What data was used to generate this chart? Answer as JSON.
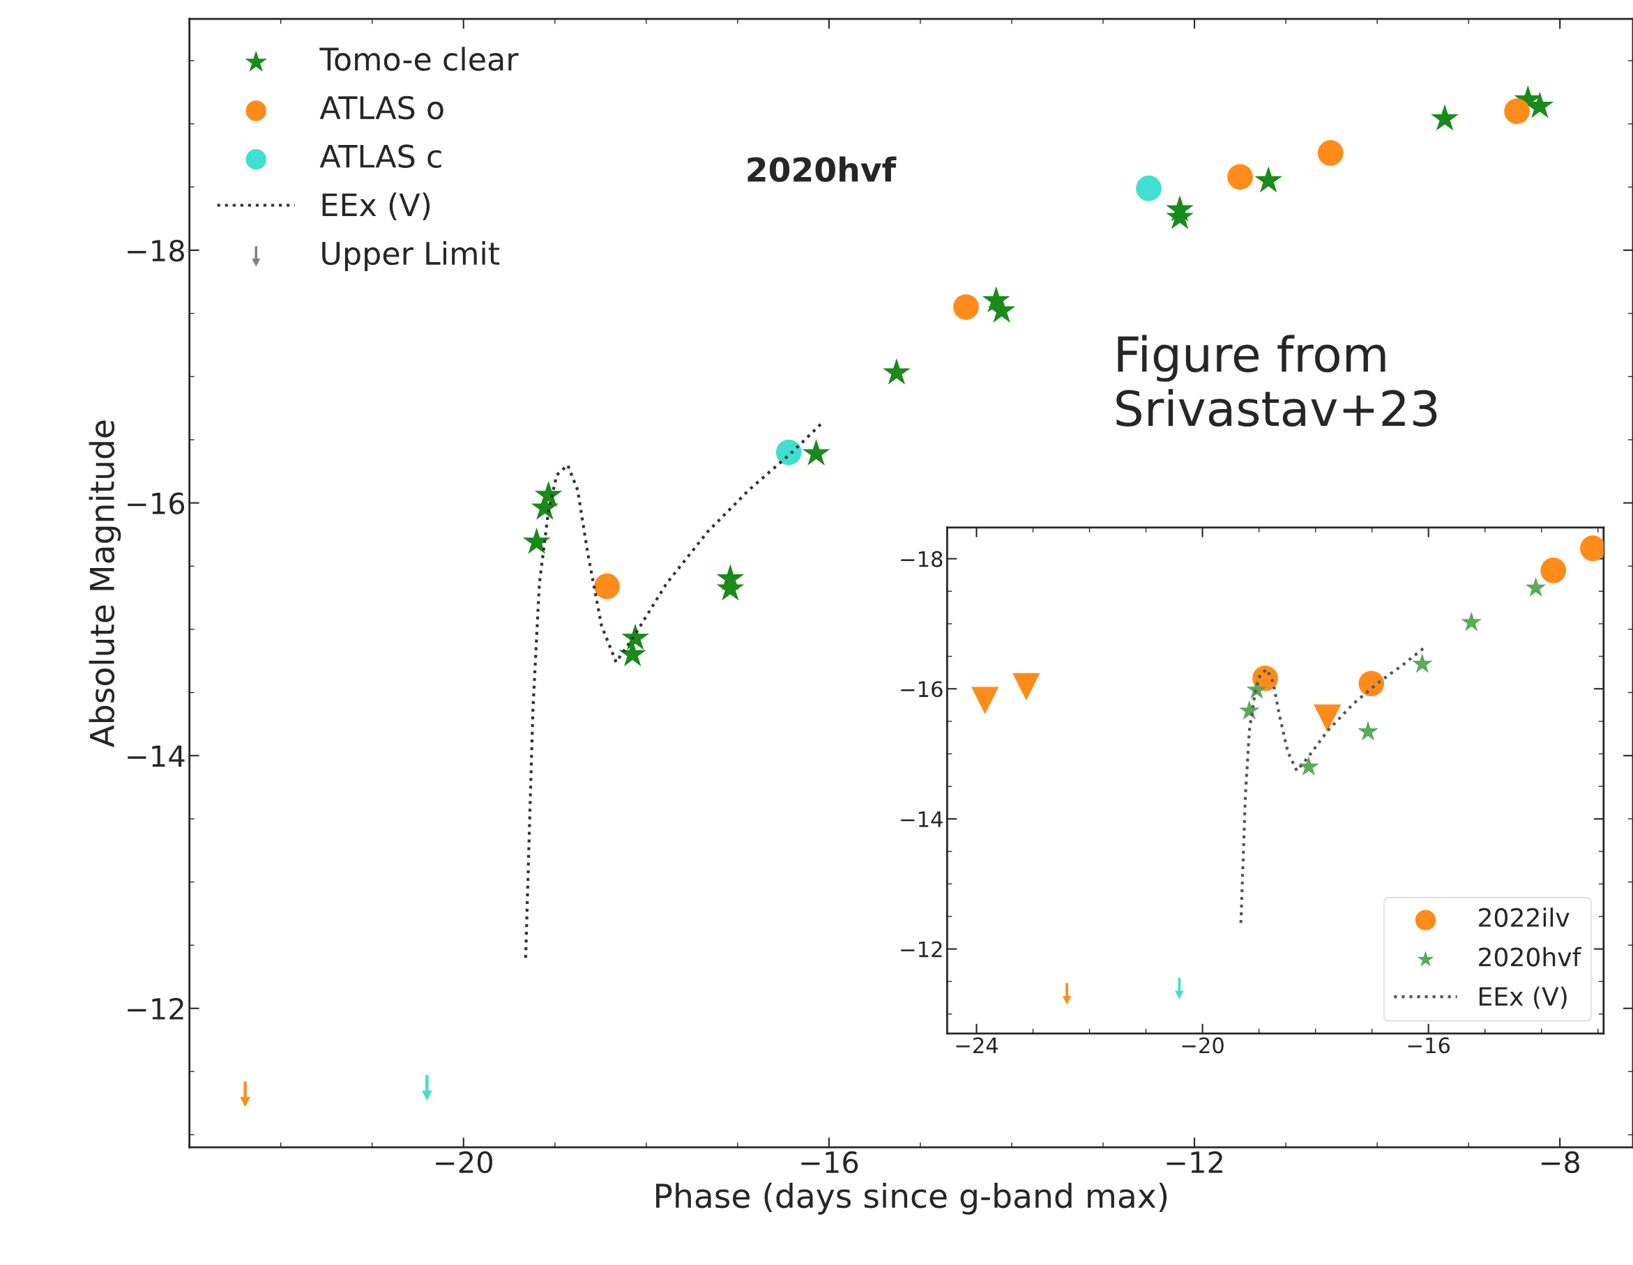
{
  "chart_data": [
    {
      "type": "scatter",
      "xlabel": "Phase (days since g-band max)",
      "ylabel": "Absolute Magnitude",
      "annotations": [
        "2020hvf",
        "Figure from Srivastav+23"
      ],
      "xlim": [
        -23.0,
        -7.2
      ],
      "ylim": [
        -10.9,
        -19.83
      ],
      "xticks": [
        {
          "value": -20,
          "label": "−20"
        },
        {
          "value": -16,
          "label": "−16"
        },
        {
          "value": -12,
          "label": "−12"
        },
        {
          "value": -8,
          "label": "−8"
        }
      ],
      "yticks": [
        {
          "value": -18,
          "label": "−18"
        },
        {
          "value": -16,
          "label": "−16"
        },
        {
          "value": -14,
          "label": "−14"
        },
        {
          "value": -12,
          "label": "−12"
        }
      ],
      "grid": false,
      "legend": "top left",
      "series": [
        {
          "name": "Tomo-e clear",
          "marker": "star",
          "color": "#1a8a1a",
          "x": [
            -19.2,
            -19.11,
            -19.07,
            -18.15,
            -18.12,
            -17.08,
            -17.08,
            -16.14,
            -15.26,
            -14.17,
            -14.11,
            -12.16,
            -12.16,
            -11.19,
            -9.26,
            -8.35,
            -8.22
          ],
          "values": [
            -15.69,
            -15.96,
            -16.06,
            -14.8,
            -14.93,
            -15.32,
            -15.4,
            -16.39,
            -17.03,
            -17.6,
            -17.52,
            -18.32,
            -18.26,
            -18.55,
            -19.04,
            -19.19,
            -19.14
          ]
        },
        {
          "name": "ATLAS o",
          "marker": "circle",
          "color": "#ff8c1a",
          "x": [
            -18.43,
            -14.5,
            -11.5,
            -10.51,
            -8.47
          ],
          "values": [
            -15.34,
            -17.55,
            -18.58,
            -18.77,
            -19.1
          ]
        },
        {
          "name": "ATLAS c",
          "marker": "circle",
          "color": "#40e0d0",
          "x": [
            -16.44,
            -12.5
          ],
          "values": [
            -16.4,
            -18.49
          ]
        },
        {
          "name": "EEx (V)",
          "type": "line",
          "line_style": "dotted",
          "marker": "none",
          "color": "#333333",
          "x": [
            -19.32,
            -19.28,
            -19.24,
            -19.17,
            -19.07,
            -18.98,
            -18.86,
            -18.75,
            -18.64,
            -18.49,
            -18.33,
            -18.13,
            -17.78,
            -17.33,
            -16.88,
            -16.42,
            -16.08
          ],
          "values": [
            -12.4,
            -13.39,
            -14.37,
            -15.36,
            -15.94,
            -16.22,
            -16.3,
            -16.1,
            -15.6,
            -15.03,
            -14.74,
            -14.95,
            -15.36,
            -15.77,
            -16.1,
            -16.39,
            -16.63
          ]
        },
        {
          "name": "Upper Limit",
          "color": "#808080"
        },
        {
          "color": "#ff8c1a",
          "x": [
            -22.39
          ],
          "values": [
            -11.32
          ]
        },
        {
          "color": "#40e0d0",
          "x": [
            -20.4
          ],
          "values": [
            -11.37
          ]
        }
      ]
    },
    {
      "type": "scatter",
      "xlim": [
        -24.52,
        -12.9
      ],
      "ylim": [
        -10.7,
        -18.48
      ],
      "xticks": [
        {
          "value": -24,
          "label": "−24"
        },
        {
          "value": -20,
          "label": "−20"
        },
        {
          "value": -16,
          "label": "−16"
        }
      ],
      "yticks": [
        {
          "value": -18,
          "label": "−18"
        },
        {
          "value": -16,
          "label": "−16"
        },
        {
          "value": -14,
          "label": "−14"
        },
        {
          "value": -12,
          "label": "−12"
        }
      ],
      "grid": false,
      "legend": "bottom right",
      "series": [
        {
          "name": "2022ilv",
          "marker": "circle",
          "color": "#ff8c1a",
          "x": [
            -18.89,
            -17.01,
            -13.79,
            -13.09
          ],
          "values": [
            -16.16,
            -16.08,
            -17.82,
            -18.16
          ]
        },
        {
          "name": "2020hvf",
          "marker": "star",
          "color": "#5aaa5a",
          "x": [
            -19.17,
            -19.04,
            -18.12,
            -17.07,
            -16.11,
            -15.24,
            -14.1
          ],
          "values": [
            -15.66,
            -15.98,
            -14.8,
            -15.34,
            -16.38,
            -17.02,
            -17.55
          ]
        },
        {
          "name": "EEx (V)",
          "type": "line",
          "line_style": "dotted",
          "marker": "none",
          "color": "#555555",
          "x": [
            -19.32,
            -19.28,
            -19.24,
            -19.17,
            -19.07,
            -18.98,
            -18.86,
            -18.75,
            -18.64,
            -18.49,
            -18.33,
            -18.13,
            -17.78,
            -17.33,
            -16.88,
            -16.42,
            -16.08
          ],
          "values": [
            -12.4,
            -13.39,
            -14.37,
            -15.36,
            -15.94,
            -16.22,
            -16.3,
            -16.1,
            -15.6,
            -15.03,
            -14.74,
            -14.95,
            -15.36,
            -15.77,
            -16.1,
            -16.39,
            -16.63
          ]
        },
        {
          "marker": "triangle",
          "color": "#ff8c1a",
          "x": [
            -23.85,
            -23.12,
            -17.79
          ],
          "values": [
            -15.82,
            -16.03,
            -15.55
          ]
        },
        {
          "color": "#ff8c1a",
          "x": [
            -22.4
          ],
          "values": [
            -11.31
          ]
        },
        {
          "color": "#40e0d0",
          "x": [
            -20.41
          ],
          "values": [
            -11.39
          ]
        }
      ]
    }
  ]
}
